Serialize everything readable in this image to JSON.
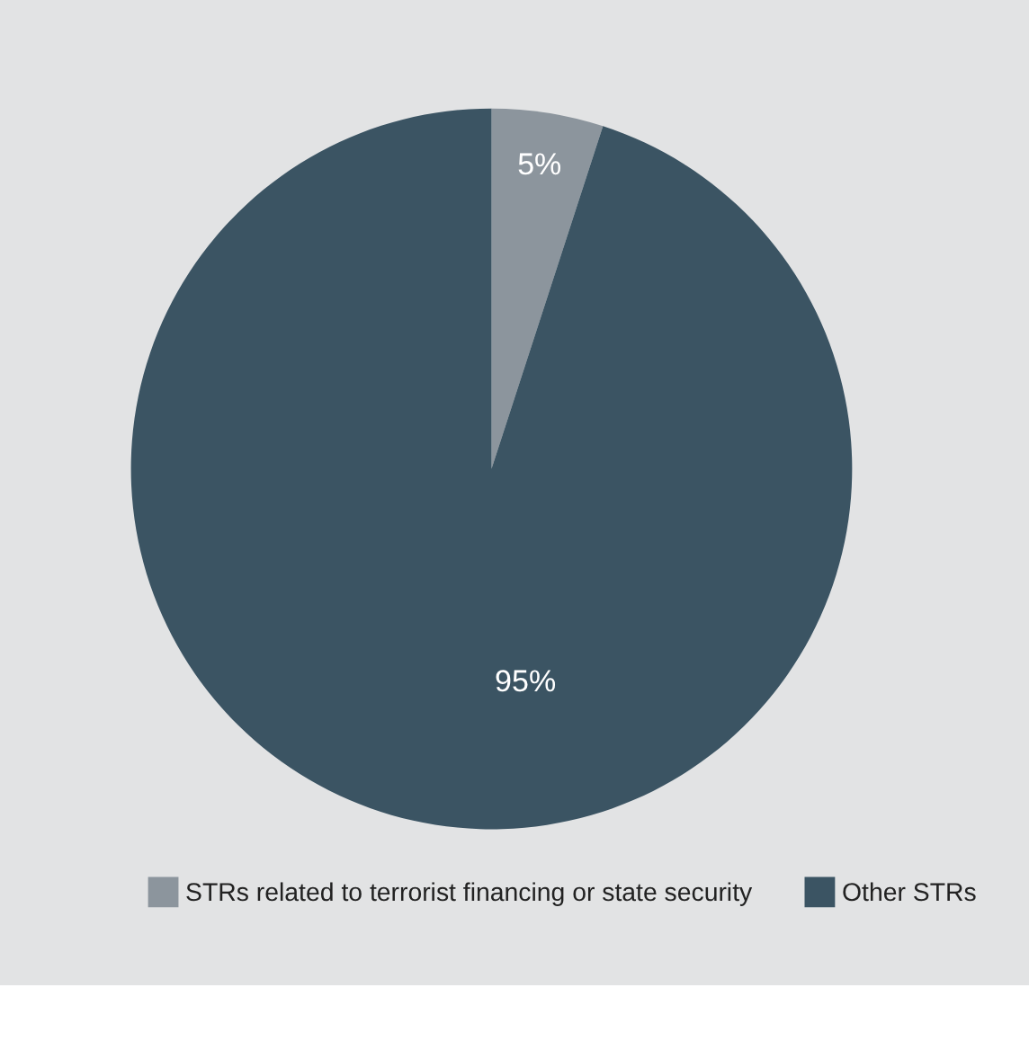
{
  "chart_data": {
    "type": "pie",
    "categories": [
      "STRs related to terrorist financing or state security",
      "Other STRs"
    ],
    "values": [
      5,
      95
    ],
    "colors": [
      "#8c959d",
      "#3b5463"
    ],
    "value_labels": [
      "5%",
      "95%"
    ],
    "legend": "bottom"
  }
}
